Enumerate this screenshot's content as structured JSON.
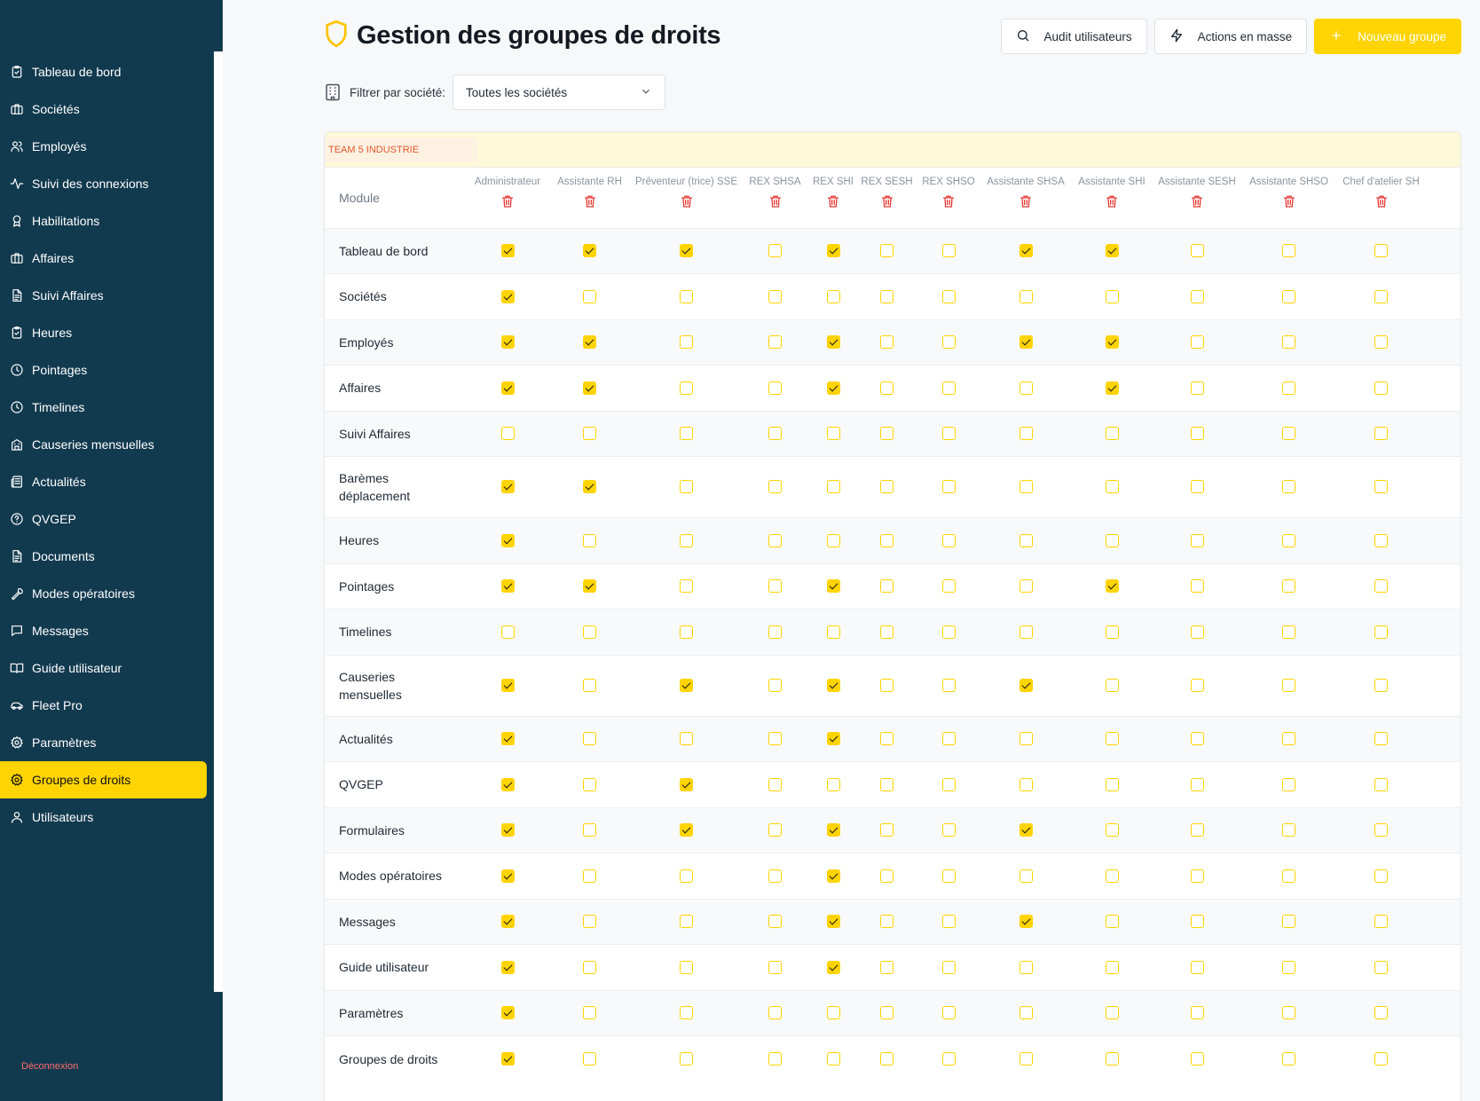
{
  "sidebar": {
    "items": [
      {
        "label": "Tableau de bord",
        "icon": "clipboard-check-icon",
        "active": false
      },
      {
        "label": "Sociétés",
        "icon": "briefcase-icon",
        "active": false
      },
      {
        "label": "Employés",
        "icon": "users-icon",
        "active": false
      },
      {
        "label": "Suivi des connexions",
        "icon": "activity-icon",
        "active": false
      },
      {
        "label": "Habilitations",
        "icon": "award-icon",
        "active": false
      },
      {
        "label": "Affaires",
        "icon": "briefcase-icon",
        "active": false
      },
      {
        "label": "Suivi Affaires",
        "icon": "file-text-icon",
        "active": false
      },
      {
        "label": "Heures",
        "icon": "clipboard-check-icon",
        "active": false
      },
      {
        "label": "Pointages",
        "icon": "clock-icon",
        "active": false
      },
      {
        "label": "Timelines",
        "icon": "clock-icon",
        "active": false
      },
      {
        "label": "Causeries mensuelles",
        "icon": "building-icon",
        "active": false
      },
      {
        "label": "Actualités",
        "icon": "newspaper-icon",
        "active": false
      },
      {
        "label": "QVGEP",
        "icon": "help-circle-icon",
        "active": false
      },
      {
        "label": "Documents",
        "icon": "file-text-icon",
        "active": false
      },
      {
        "label": "Modes opératoires",
        "icon": "wrench-icon",
        "active": false
      },
      {
        "label": "Messages",
        "icon": "message-square-icon",
        "active": false
      },
      {
        "label": "Guide utilisateur",
        "icon": "book-open-icon",
        "active": false
      },
      {
        "label": "Fleet Pro",
        "icon": "car-icon",
        "active": false
      },
      {
        "label": "Paramètres",
        "icon": "gear-icon",
        "active": false
      },
      {
        "label": "Groupes de droits",
        "icon": "gear-icon",
        "active": true
      },
      {
        "label": "Utilisateurs",
        "icon": "user-icon",
        "active": false
      }
    ],
    "logout_label": "Déconnexion"
  },
  "header": {
    "title": "Gestion des groupes de droits",
    "title_icon": "shield-icon",
    "buttons": {
      "audit": "Audit utilisateurs",
      "bulk": "Actions en masse",
      "new_group": "Nouveau groupe"
    }
  },
  "filter": {
    "label": "Filtrer par société:",
    "selected": "Toutes les sociétés"
  },
  "colors": {
    "sidebar_bg": "#123a4f",
    "accent": "#ffd400",
    "company_text": "#e05a2b",
    "delete_red": "#e53935",
    "logout": "#ff6b6b"
  },
  "permissions_table": {
    "company": "TEAM 5 INDUSTRIE",
    "module_header": "Module",
    "groups": [
      "Administrateur",
      "Assistante RH",
      "Préventeur (trice) SSE",
      "REX SHSA",
      "REX SHI",
      "REX SESH",
      "REX SHSO",
      "Assistante SHSA",
      "Assistante SHI",
      "Assistante SESH",
      "Assistante SHSO",
      "Chef d'atelier SH"
    ],
    "rows": [
      {
        "module": "Tableau de bord",
        "checks": [
          1,
          1,
          1,
          0,
          1,
          0,
          0,
          1,
          1,
          0,
          0,
          0
        ]
      },
      {
        "module": "Sociétés",
        "checks": [
          1,
          0,
          0,
          0,
          0,
          0,
          0,
          0,
          0,
          0,
          0,
          0
        ]
      },
      {
        "module": "Employés",
        "checks": [
          1,
          1,
          0,
          0,
          1,
          0,
          0,
          1,
          1,
          0,
          0,
          0
        ]
      },
      {
        "module": "Affaires",
        "checks": [
          1,
          1,
          0,
          0,
          1,
          0,
          0,
          0,
          1,
          0,
          0,
          0
        ]
      },
      {
        "module": "Suivi Affaires",
        "checks": [
          0,
          0,
          0,
          0,
          0,
          0,
          0,
          0,
          0,
          0,
          0,
          0
        ]
      },
      {
        "module": "Barèmes déplacement",
        "checks": [
          1,
          1,
          0,
          0,
          0,
          0,
          0,
          0,
          0,
          0,
          0,
          0
        ]
      },
      {
        "module": "Heures",
        "checks": [
          1,
          0,
          0,
          0,
          0,
          0,
          0,
          0,
          0,
          0,
          0,
          0
        ]
      },
      {
        "module": "Pointages",
        "checks": [
          1,
          1,
          0,
          0,
          1,
          0,
          0,
          0,
          1,
          0,
          0,
          0
        ]
      },
      {
        "module": "Timelines",
        "checks": [
          0,
          0,
          0,
          0,
          0,
          0,
          0,
          0,
          0,
          0,
          0,
          0
        ]
      },
      {
        "module": "Causeries mensuelles",
        "checks": [
          1,
          0,
          1,
          0,
          1,
          0,
          0,
          1,
          0,
          0,
          0,
          0
        ]
      },
      {
        "module": "Actualités",
        "checks": [
          1,
          0,
          0,
          0,
          1,
          0,
          0,
          0,
          0,
          0,
          0,
          0
        ]
      },
      {
        "module": "QVGEP",
        "checks": [
          1,
          0,
          1,
          0,
          0,
          0,
          0,
          0,
          0,
          0,
          0,
          0
        ]
      },
      {
        "module": "Formulaires",
        "checks": [
          1,
          0,
          1,
          0,
          1,
          0,
          0,
          1,
          0,
          0,
          0,
          0
        ]
      },
      {
        "module": "Modes opératoires",
        "checks": [
          1,
          0,
          0,
          0,
          1,
          0,
          0,
          0,
          0,
          0,
          0,
          0
        ]
      },
      {
        "module": "Messages",
        "checks": [
          1,
          0,
          0,
          0,
          1,
          0,
          0,
          1,
          0,
          0,
          0,
          0
        ]
      },
      {
        "module": "Guide utilisateur",
        "checks": [
          1,
          0,
          0,
          0,
          1,
          0,
          0,
          0,
          0,
          0,
          0,
          0
        ]
      },
      {
        "module": "Paramètres",
        "checks": [
          1,
          0,
          0,
          0,
          0,
          0,
          0,
          0,
          0,
          0,
          0,
          0
        ]
      },
      {
        "module": "Groupes de droits",
        "checks": [
          1,
          0,
          0,
          0,
          0,
          0,
          0,
          0,
          0,
          0,
          0,
          0
        ]
      }
    ]
  }
}
